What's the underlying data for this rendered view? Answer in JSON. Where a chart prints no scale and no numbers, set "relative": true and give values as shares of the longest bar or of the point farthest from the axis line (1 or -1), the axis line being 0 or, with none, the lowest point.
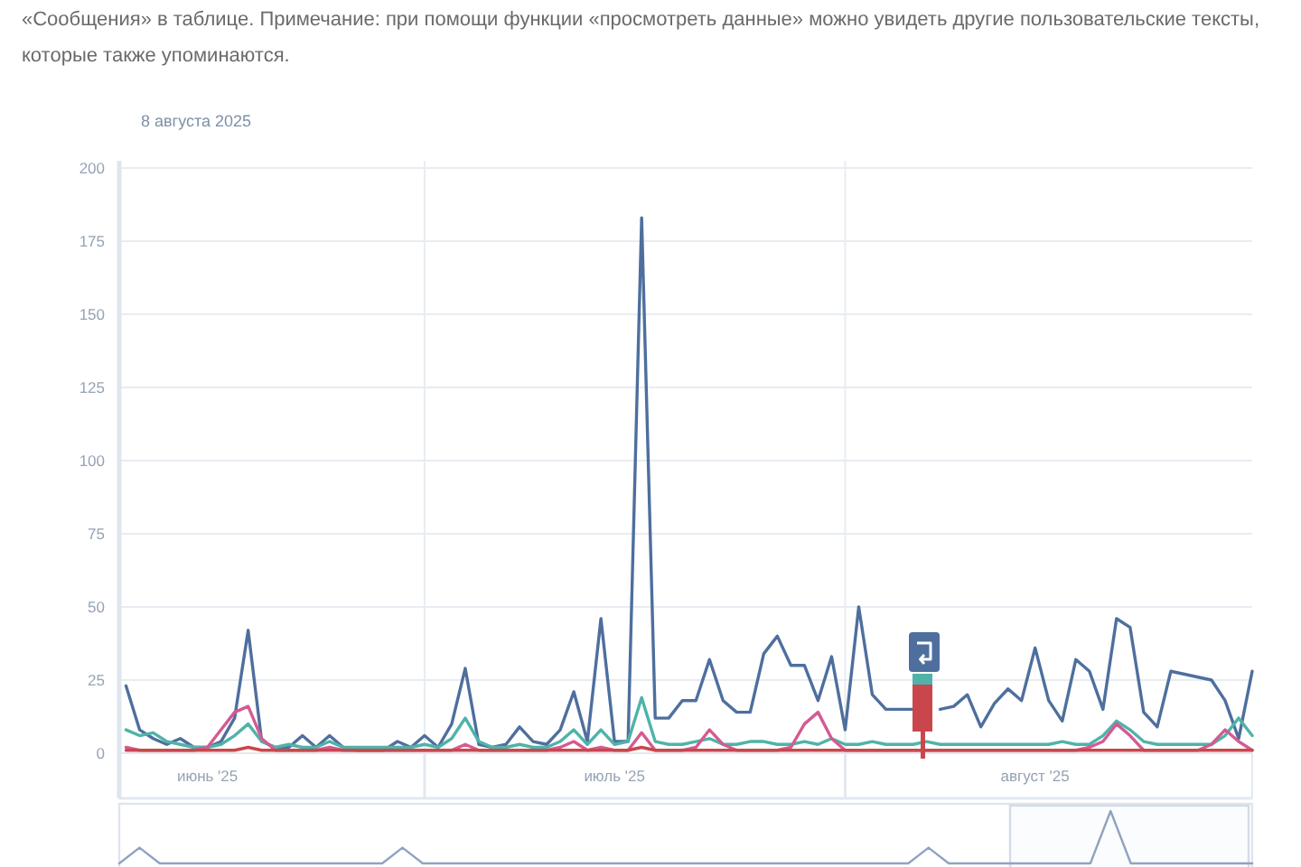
{
  "chart_data": [
    {
      "type": "line",
      "title": "«Сообщения» в таблице. Примечание: при помощи функции «просмотреть данные» можно увидеть другие пользовательские тексты, которые также упоминаются.",
      "subtitle": "8 августа 2025",
      "x": [
        "2025-06-09",
        "2025-06-10",
        "2025-06-11",
        "2025-06-12",
        "2025-06-13",
        "2025-06-14",
        "2025-06-15",
        "2025-06-16",
        "2025-06-17",
        "2025-06-18",
        "2025-06-19",
        "2025-06-20",
        "2025-06-21",
        "2025-06-22",
        "2025-06-23",
        "2025-06-24",
        "2025-06-25",
        "2025-06-26",
        "2025-06-27",
        "2025-06-28",
        "2025-06-29",
        "2025-06-30",
        "2025-07-01",
        "2025-07-02",
        "2025-07-03",
        "2025-07-04",
        "2025-07-05",
        "2025-07-06",
        "2025-07-07",
        "2025-07-08",
        "2025-07-09",
        "2025-07-10",
        "2025-07-11",
        "2025-07-12",
        "2025-07-13",
        "2025-07-14",
        "2025-07-15",
        "2025-07-16",
        "2025-07-17",
        "2025-07-18",
        "2025-07-19",
        "2025-07-20",
        "2025-07-21",
        "2025-07-22",
        "2025-07-23",
        "2025-07-24",
        "2025-07-25",
        "2025-07-26",
        "2025-07-27",
        "2025-07-28",
        "2025-07-29",
        "2025-07-30",
        "2025-07-31",
        "2025-08-01",
        "2025-08-02",
        "2025-08-03",
        "2025-08-04",
        "2025-08-05",
        "2025-08-06",
        "2025-08-07",
        "2025-08-08",
        "2025-08-09",
        "2025-08-10",
        "2025-08-11",
        "2025-08-12",
        "2025-08-13",
        "2025-08-14",
        "2025-08-15",
        "2025-08-16",
        "2025-08-17",
        "2025-08-18",
        "2025-08-19",
        "2025-08-20",
        "2025-08-21",
        "2025-08-22",
        "2025-08-23",
        "2025-08-24",
        "2025-08-25",
        "2025-08-26",
        "2025-08-27",
        "2025-08-28",
        "2025-08-29",
        "2025-08-30",
        "2025-08-31"
      ],
      "series": [
        {
          "color": "#4e6f9e",
          "values": [
            23,
            8,
            5,
            3,
            5,
            2,
            2,
            4,
            12,
            42,
            4,
            2,
            2,
            6,
            2,
            6,
            2,
            1,
            1,
            1,
            4,
            2,
            6,
            2,
            10,
            29,
            3,
            2,
            3,
            9,
            4,
            3,
            8,
            21,
            4,
            46,
            4,
            4,
            183,
            12,
            12,
            18,
            18,
            32,
            18,
            14,
            14,
            34,
            40,
            30,
            30,
            18,
            33,
            8,
            50,
            20,
            15,
            15,
            15,
            null,
            15,
            16,
            20,
            9,
            17,
            22,
            18,
            36,
            18,
            11,
            32,
            28,
            15,
            46,
            43,
            14,
            9,
            28,
            27,
            26,
            25,
            18,
            5,
            28
          ]
        },
        {
          "color": "#4fb3a9",
          "values": [
            8,
            6,
            7,
            4,
            3,
            2,
            2,
            3,
            6,
            10,
            4,
            2,
            3,
            2,
            2,
            4,
            2,
            2,
            2,
            2,
            2,
            2,
            3,
            2,
            5,
            12,
            4,
            2,
            2,
            3,
            2,
            2,
            4,
            8,
            3,
            8,
            3,
            4,
            19,
            4,
            3,
            3,
            4,
            5,
            3,
            3,
            4,
            4,
            3,
            3,
            4,
            3,
            5,
            3,
            3,
            4,
            3,
            3,
            3,
            4,
            3,
            3,
            3,
            3,
            3,
            3,
            3,
            3,
            3,
            4,
            3,
            3,
            6,
            11,
            8,
            4,
            3,
            3,
            3,
            3,
            3,
            6,
            12,
            6
          ]
        },
        {
          "color": "#d45a92",
          "values": [
            2,
            1,
            1,
            1,
            1,
            1,
            2,
            8,
            14,
            16,
            5,
            1,
            1,
            1,
            1,
            2,
            1,
            1,
            1,
            1,
            1,
            1,
            1,
            1,
            1,
            3,
            1,
            1,
            1,
            1,
            1,
            1,
            2,
            4,
            1,
            2,
            1,
            1,
            7,
            1,
            1,
            1,
            2,
            8,
            3,
            1,
            1,
            1,
            1,
            2,
            10,
            14,
            5,
            1,
            1,
            1,
            1,
            1,
            1,
            1,
            1,
            1,
            1,
            1,
            1,
            1,
            1,
            1,
            1,
            1,
            1,
            2,
            4,
            10,
            6,
            1,
            1,
            1,
            1,
            1,
            3,
            8,
            4,
            1
          ]
        },
        {
          "color": "#c9474c",
          "values": [
            1,
            1,
            1,
            1,
            1,
            1,
            1,
            1,
            1,
            2,
            1,
            1,
            1,
            1,
            1,
            1,
            1,
            1,
            1,
            1,
            1,
            1,
            1,
            1,
            1,
            1,
            1,
            1,
            1,
            1,
            1,
            1,
            1,
            1,
            1,
            1,
            1,
            1,
            2,
            1,
            1,
            1,
            1,
            1,
            1,
            1,
            1,
            1,
            1,
            1,
            1,
            1,
            1,
            1,
            1,
            1,
            1,
            1,
            1,
            1,
            1,
            1,
            1,
            1,
            1,
            1,
            1,
            1,
            1,
            1,
            1,
            1,
            1,
            1,
            1,
            1,
            1,
            1,
            1,
            1,
            1,
            1,
            1,
            1
          ]
        }
      ],
      "xlim": [
        "2025-06-08T12:00",
        "2025-08-31"
      ],
      "xticks": [
        {
          "value": "2025-06-15",
          "label": "июнь '25"
        },
        {
          "value": "2025-07-01",
          "label": null
        },
        {
          "value": "2025-07-15",
          "label": "июль '25"
        },
        {
          "value": "2025-08-01",
          "label": null
        },
        {
          "value": "2025-08-15",
          "label": "август '25"
        }
      ],
      "ylim": [
        0,
        200
      ],
      "yticks": [
        0,
        25,
        50,
        75,
        100,
        125,
        150,
        175,
        200
      ],
      "grid": true,
      "line_style": "solid"
    },
    {
      "type": "line",
      "relative": true,
      "categories": [
        null,
        null,
        null,
        null,
        null,
        null,
        null,
        null,
        null,
        null,
        null,
        null,
        null,
        null,
        null,
        null,
        null,
        null,
        null,
        null,
        null,
        null,
        null,
        null,
        null,
        null,
        null,
        null,
        null,
        null,
        null,
        null,
        null,
        null,
        null,
        null,
        null,
        null,
        null,
        null,
        null,
        null,
        null,
        null,
        null,
        null,
        null,
        null,
        null,
        null,
        null,
        null,
        null,
        null,
        null,
        null,
        null
      ],
      "series": [
        {
          "color": "#8fa3c0",
          "values": [
            0,
            0.3,
            0,
            0,
            0,
            0,
            0,
            0,
            0,
            0,
            0,
            0,
            0,
            0,
            0.3,
            0,
            0,
            0,
            0,
            0,
            0,
            0,
            0,
            0,
            0,
            0,
            0,
            0,
            0,
            0,
            0,
            0,
            0,
            0,
            0,
            0,
            0,
            0,
            0,
            0,
            0.3,
            0,
            0,
            0,
            0,
            0,
            0,
            0,
            0,
            1,
            0,
            0,
            0,
            0,
            0,
            0,
            0
          ]
        }
      ]
    }
  ]
}
